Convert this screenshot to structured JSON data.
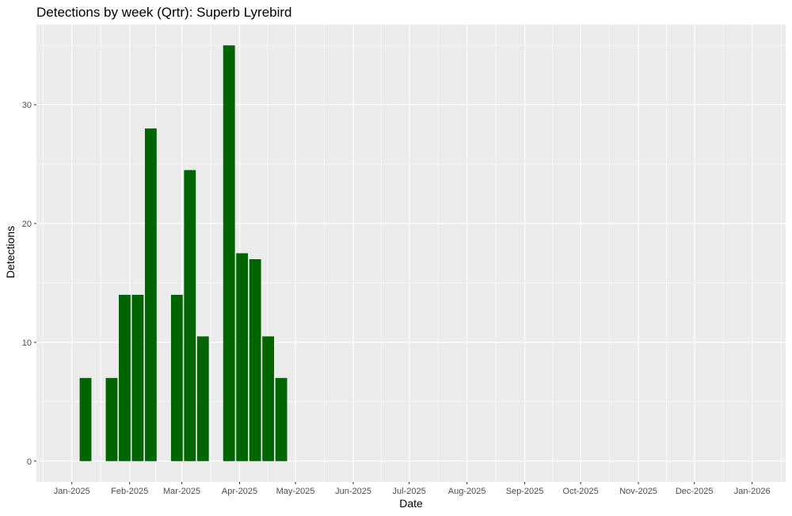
{
  "chart_data": {
    "type": "bar",
    "title": "Detections by week (Qrtr): Superb Lyrebird",
    "xlabel": "Date",
    "ylabel": "Detections",
    "x_ticks": [
      {
        "date": "2025-01-01",
        "label": "Jan-2025"
      },
      {
        "date": "2025-02-01",
        "label": "Feb-2025"
      },
      {
        "date": "2025-03-01",
        "label": "Mar-2025"
      },
      {
        "date": "2025-04-01",
        "label": "Apr-2025"
      },
      {
        "date": "2025-05-01",
        "label": "May-2025"
      },
      {
        "date": "2025-06-01",
        "label": "Jun-2025"
      },
      {
        "date": "2025-07-01",
        "label": "Jul-2025"
      },
      {
        "date": "2025-08-01",
        "label": "Aug-2025"
      },
      {
        "date": "2025-09-01",
        "label": "Sep-2025"
      },
      {
        "date": "2025-10-01",
        "label": "Oct-2025"
      },
      {
        "date": "2025-11-01",
        "label": "Nov-2025"
      },
      {
        "date": "2025-12-01",
        "label": "Dec-2025"
      },
      {
        "date": "2026-01-01",
        "label": "Jan-2026"
      }
    ],
    "y_ticks": [
      0,
      10,
      20,
      30
    ],
    "xlim": [
      "2024-12-13",
      "2026-01-19"
    ],
    "ylim": [
      -1.75,
      36.75
    ],
    "bars": [
      {
        "date": "2025-01-08",
        "value": 7
      },
      {
        "date": "2025-01-22",
        "value": 7
      },
      {
        "date": "2025-01-29",
        "value": 14
      },
      {
        "date": "2025-02-05",
        "value": 14
      },
      {
        "date": "2025-02-12",
        "value": 28
      },
      {
        "date": "2025-02-26",
        "value": 14
      },
      {
        "date": "2025-03-05",
        "value": 24.5
      },
      {
        "date": "2025-03-12",
        "value": 10.5
      },
      {
        "date": "2025-03-26",
        "value": 35
      },
      {
        "date": "2025-04-02",
        "value": 17.5
      },
      {
        "date": "2025-04-09",
        "value": 17
      },
      {
        "date": "2025-04-16",
        "value": 10.5
      },
      {
        "date": "2025-04-23",
        "value": 7
      }
    ],
    "bar_color": "#006400",
    "panel_color": "#ebebeb",
    "grid": true,
    "legend": "none"
  }
}
